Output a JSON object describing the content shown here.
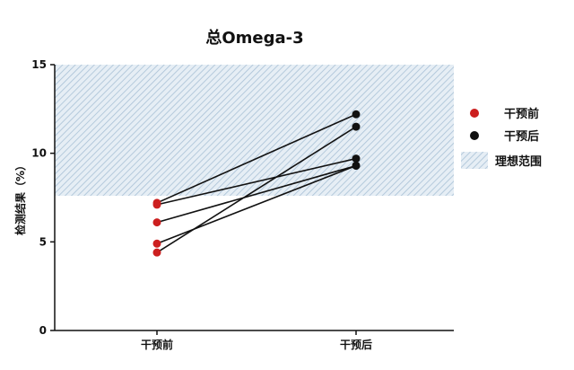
{
  "chart_data": {
    "type": "scatter",
    "title": "总Omega-3",
    "ylabel": "检测结果（%）",
    "xlabel": "",
    "categories": [
      "干预前",
      "干预后"
    ],
    "ylim": [
      0,
      15
    ],
    "yticks": [
      0,
      5,
      10,
      15
    ],
    "ideal_range": {
      "label": "理想范围",
      "from": 7.6,
      "to": 15
    },
    "series": [
      {
        "name": "干预前",
        "color": "#cc1f1f"
      },
      {
        "name": "干预后",
        "color": "#111111"
      }
    ],
    "pairs": [
      {
        "before": 7.2,
        "after": 12.2
      },
      {
        "before": 7.1,
        "after": 9.7
      },
      {
        "before": 6.1,
        "after": 9.3
      },
      {
        "before": 4.9,
        "after": 9.3
      },
      {
        "before": 4.4,
        "after": 11.5
      }
    ],
    "legend_position": "right",
    "grid": false
  }
}
